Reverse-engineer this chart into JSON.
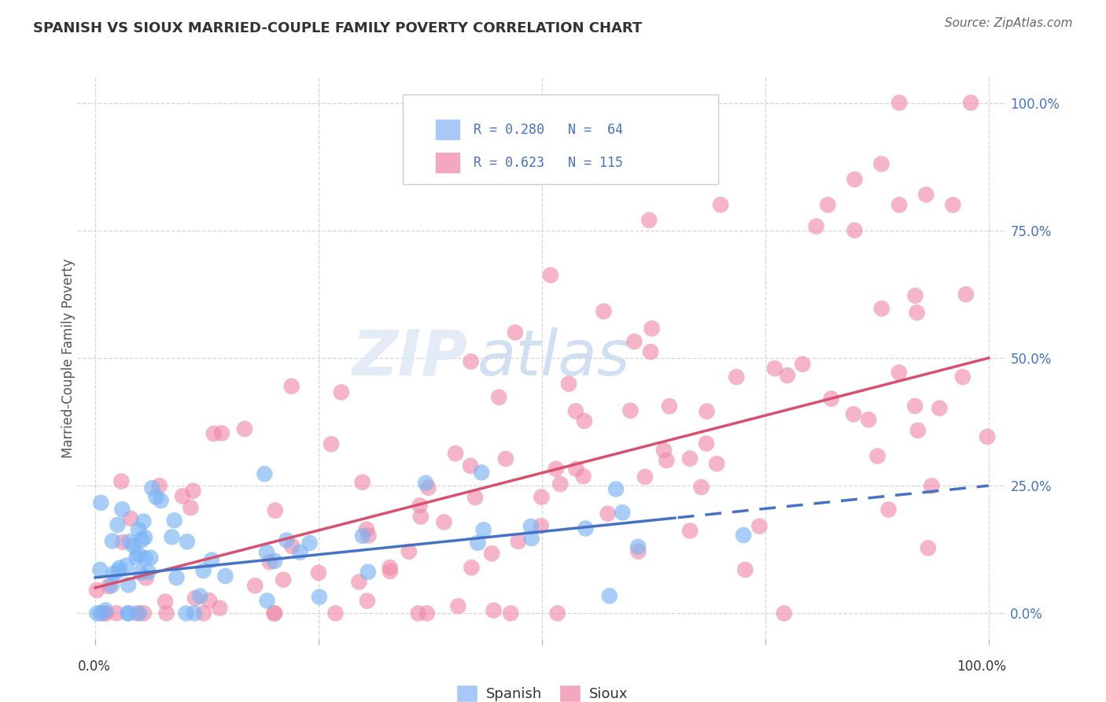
{
  "title": "SPANISH VS SIOUX MARRIED-COUPLE FAMILY POVERTY CORRELATION CHART",
  "source": "Source: ZipAtlas.com",
  "ylabel": "Married-Couple Family Poverty",
  "ytick_labels": [
    "0.0%",
    "25.0%",
    "50.0%",
    "75.0%",
    "100.0%"
  ],
  "ytick_vals": [
    0,
    25,
    50,
    75,
    100
  ],
  "xlim": [
    -2,
    102
  ],
  "ylim": [
    -5,
    105
  ],
  "ylim_data": [
    0,
    100
  ],
  "bottom_legend": [
    "Spanish",
    "Sioux"
  ],
  "bottom_legend_colors": [
    "#a8c8f8",
    "#f4a8c0"
  ],
  "watermark_zip": "ZIP",
  "watermark_atlas": "atlas",
  "spanish_color": "#7ab4f5",
  "sioux_color": "#f08caa",
  "spanish_line_color": "#4472c4",
  "sioux_line_color": "#d94f6e",
  "R_spanish": 0.28,
  "N_spanish": 64,
  "R_sioux": 0.623,
  "N_sioux": 115,
  "legend_blue_color": "#a8c8f8",
  "legend_pink_color": "#f4a8c0",
  "legend_text_color": "#4472c4",
  "title_color": "#333333",
  "source_color": "#666666",
  "ytick_color": "#4472c4",
  "grid_color": "#cccccc",
  "dash_start_x": 65,
  "sioux_line_start_y": 5.0,
  "sioux_line_end_y": 50.0,
  "spanish_line_start_y": 7.0,
  "spanish_line_end_y": 25.0
}
